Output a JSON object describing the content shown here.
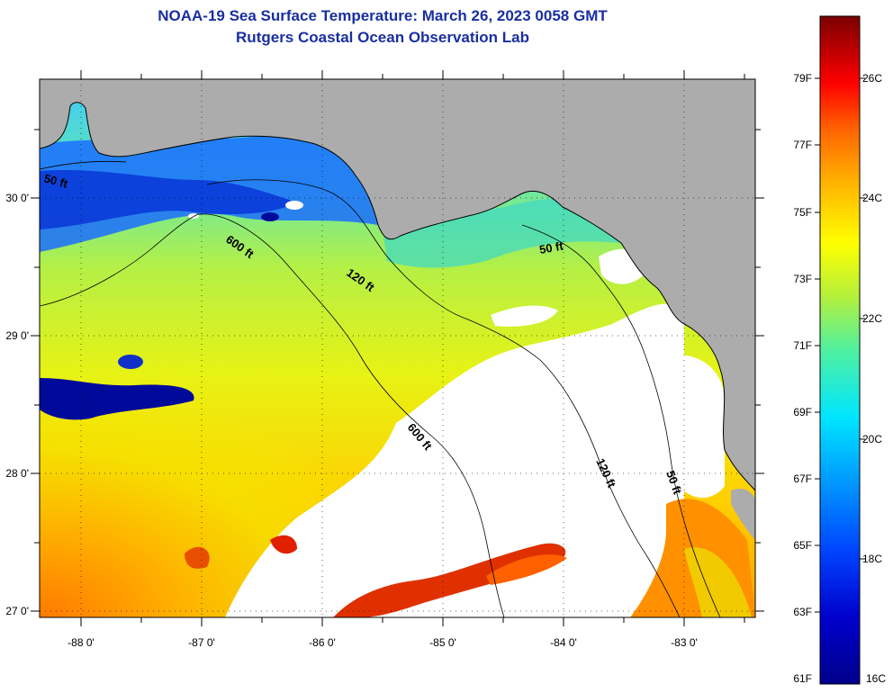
{
  "header": {
    "title_line1": "NOAA-19 Sea Surface Temperature:  March 26, 2023 0058 GMT",
    "title_line2": "Rutgers Coastal Ocean Observation Lab"
  },
  "map": {
    "x_ticks": [
      {
        "lon": -88,
        "label": "-88 0'"
      },
      {
        "lon": -87,
        "label": "-87 0'"
      },
      {
        "lon": -86,
        "label": "-86 0'"
      },
      {
        "lon": -85,
        "label": "-85 0'"
      },
      {
        "lon": -84,
        "label": "-84 0'"
      },
      {
        "lon": -83,
        "label": "-83 0'"
      }
    ],
    "y_ticks": [
      {
        "lat": 30,
        "label": "30 0'"
      },
      {
        "lat": 29,
        "label": "29 0'"
      },
      {
        "lat": 28,
        "label": "28 0'"
      },
      {
        "lat": 27,
        "label": "27 0'"
      }
    ],
    "contour_labels": [
      "50 ft",
      "600 ft",
      "120 ft",
      "50 ft",
      "600 ft",
      "120 ft",
      "50 ft"
    ]
  },
  "colorbar": {
    "fahrenheit": [
      "79F",
      "77F",
      "75F",
      "73F",
      "71F",
      "69F",
      "67F",
      "65F",
      "63F",
      "61F"
    ],
    "celsius": [
      "26C",
      "24C",
      "22C",
      "20C",
      "18C",
      "16C"
    ]
  },
  "colors": {
    "land": "#acacac",
    "clouds": "#ffffff",
    "title": "#1a2fa0"
  }
}
